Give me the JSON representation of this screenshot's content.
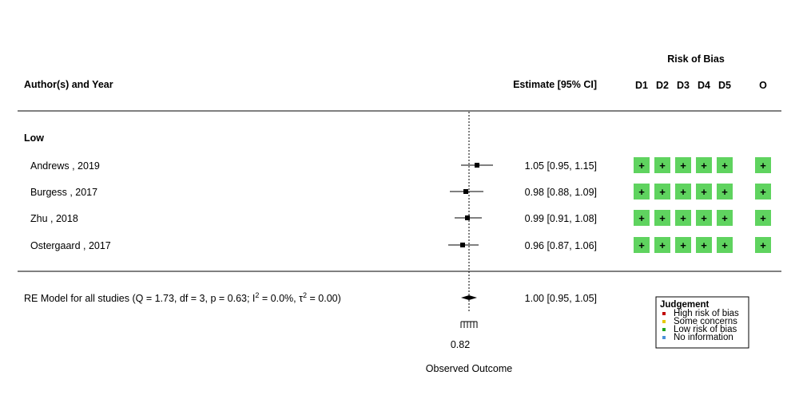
{
  "chart_data": {
    "type": "forest",
    "header": {
      "study_col": "Author(s) and Year",
      "estimate_col": "Estimate [95% CI]",
      "rob_title": "Risk of Bias",
      "rob_cols": [
        "D1",
        "D2",
        "D3",
        "D4",
        "D5",
        "O"
      ]
    },
    "group_label": "Low",
    "studies": [
      {
        "label": "Andrews , 2019",
        "estimate": 1.05,
        "ci_low": 0.95,
        "ci_high": 1.15,
        "text": "1.05 [0.95, 1.15]",
        "rob": [
          "+",
          "+",
          "+",
          "+",
          "+",
          "+"
        ]
      },
      {
        "label": "Burgess , 2017",
        "estimate": 0.98,
        "ci_low": 0.88,
        "ci_high": 1.09,
        "text": "0.98 [0.88, 1.09]",
        "rob": [
          "+",
          "+",
          "+",
          "+",
          "+",
          "+"
        ]
      },
      {
        "label": "Zhu , 2018",
        "estimate": 0.99,
        "ci_low": 0.91,
        "ci_high": 1.08,
        "text": "0.99 [0.91, 1.08]",
        "rob": [
          "+",
          "+",
          "+",
          "+",
          "+",
          "+"
        ]
      },
      {
        "label": "Ostergaard , 2017",
        "estimate": 0.96,
        "ci_low": 0.87,
        "ci_high": 1.06,
        "text": "0.96 [0.87, 1.06]",
        "rob": [
          "+",
          "+",
          "+",
          "+",
          "+",
          "+"
        ]
      }
    ],
    "summary": {
      "label_prefix": "RE Model for all studies (Q = 1.73, df = 3, p = 0.63; I",
      "label_sup1": "2",
      "label_mid": " = 0.0%, τ",
      "label_sup2": "2",
      "label_suffix": " = 0.00)",
      "estimate": 1.0,
      "ci_low": 0.95,
      "ci_high": 1.05,
      "text": "1.00 [0.95, 1.05]"
    },
    "reference_line": 1.0,
    "x_tick_label": "0.82",
    "xlabel": "Observed Outcome",
    "legend": {
      "title": "Judgement",
      "items": [
        {
          "label": "High risk of bias",
          "color": "#c00000"
        },
        {
          "label": "Some concerns",
          "color": "#e6c800"
        },
        {
          "label": "Low risk of bias",
          "color": "#1fa51f"
        },
        {
          "label": "No information",
          "color": "#4a90d9"
        }
      ]
    },
    "rob_fill_color": "#5fd35f"
  }
}
